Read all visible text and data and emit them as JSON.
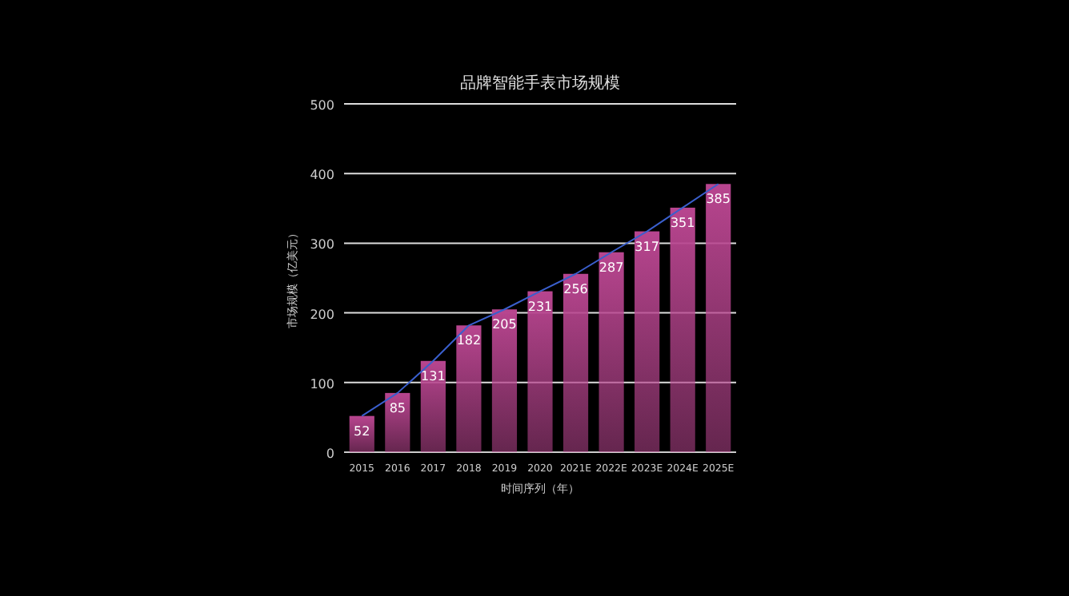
{
  "chart_data": {
    "type": "bar",
    "title": "品牌智能手表市场规模",
    "xlabel": "时间序列（年）",
    "ylabel": "市场规模（亿美元）",
    "categories": [
      "2015",
      "2016",
      "2017",
      "2018",
      "2019",
      "2020",
      "2021E",
      "2022E",
      "2023E",
      "2024E",
      "2025E"
    ],
    "series": [
      {
        "color": "#b8458f",
        "values": [
          52,
          85,
          131,
          182,
          205,
          231,
          256,
          287,
          317,
          351,
          385
        ],
        "value_labels": [
          "52",
          "85",
          "131",
          "182",
          "205",
          "231",
          "256",
          "287",
          "317",
          "351",
          "385"
        ]
      },
      {
        "type": "line",
        "color": "#3a5fcd",
        "values": [
          52,
          85,
          131,
          182,
          205,
          231,
          256,
          287,
          317,
          351,
          385
        ]
      }
    ],
    "ylim": [
      0,
      500
    ],
    "yticks": [
      0,
      100,
      200,
      300,
      400,
      500
    ],
    "grid": "y"
  }
}
